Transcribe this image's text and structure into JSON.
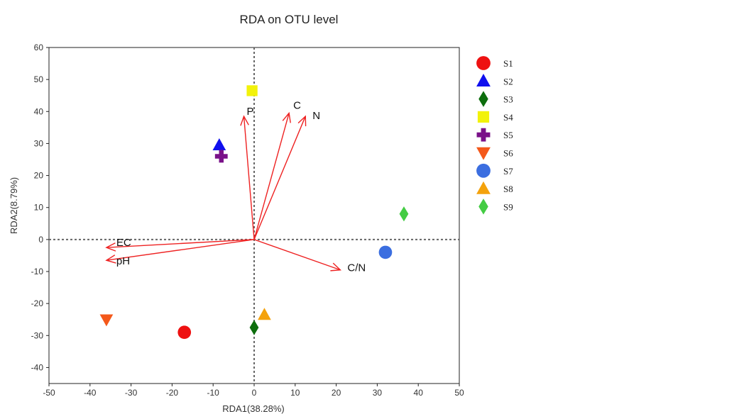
{
  "chart_data": {
    "type": "scatter",
    "title": "RDA on OTU level",
    "xlabel": "RDA1(38.28%)",
    "ylabel": "RDA2(8.79%)",
    "xlim": [
      -50,
      50
    ],
    "ylim": [
      -45,
      60
    ],
    "xticks": [
      -50,
      -40,
      -30,
      -20,
      -10,
      0,
      10,
      20,
      30,
      40,
      50
    ],
    "yticks": [
      -40,
      -30,
      -20,
      -10,
      0,
      10,
      20,
      30,
      40,
      50,
      60
    ],
    "reference_lines": {
      "x": 0,
      "y": 0,
      "style": "dotted"
    },
    "legend_position": "right",
    "samples": [
      {
        "name": "S1",
        "x": -17,
        "y": -29,
        "marker": "circle",
        "color": "#ee1111"
      },
      {
        "name": "S2",
        "x": -8.5,
        "y": 29.5,
        "marker": "triangle-up",
        "color": "#1010ee"
      },
      {
        "name": "S3",
        "x": 0,
        "y": -27.5,
        "marker": "diamond",
        "color": "#0d6e0d"
      },
      {
        "name": "S4",
        "x": -0.5,
        "y": 46.5,
        "marker": "square",
        "color": "#f2f20a"
      },
      {
        "name": "S5",
        "x": -8,
        "y": 26,
        "marker": "cross",
        "color": "#7a1189"
      },
      {
        "name": "S6",
        "x": -36,
        "y": -25,
        "marker": "triangle-down",
        "color": "#f4581a"
      },
      {
        "name": "S7",
        "x": 32,
        "y": -4,
        "marker": "circle",
        "color": "#3b6ee0"
      },
      {
        "name": "S8",
        "x": 2.5,
        "y": -23.5,
        "marker": "triangle-up",
        "color": "#f4a20c"
      },
      {
        "name": "S9",
        "x": 36.5,
        "y": 8,
        "marker": "diamond",
        "color": "#44cc44"
      }
    ],
    "env_vectors": [
      {
        "name": "P",
        "x": -2.5,
        "y": 38.5
      },
      {
        "name": "C",
        "x": 8.5,
        "y": 39.5
      },
      {
        "name": "N",
        "x": 12.5,
        "y": 38.5
      },
      {
        "name": "EC",
        "x": -36,
        "y": -2.5
      },
      {
        "name": "pH",
        "x": -36,
        "y": -6.5
      },
      {
        "name": "C/N",
        "x": 21,
        "y": -9.5
      }
    ],
    "vector_color": "#ee2222",
    "point_colors_note": "",
    "axis_color": "#555555"
  }
}
